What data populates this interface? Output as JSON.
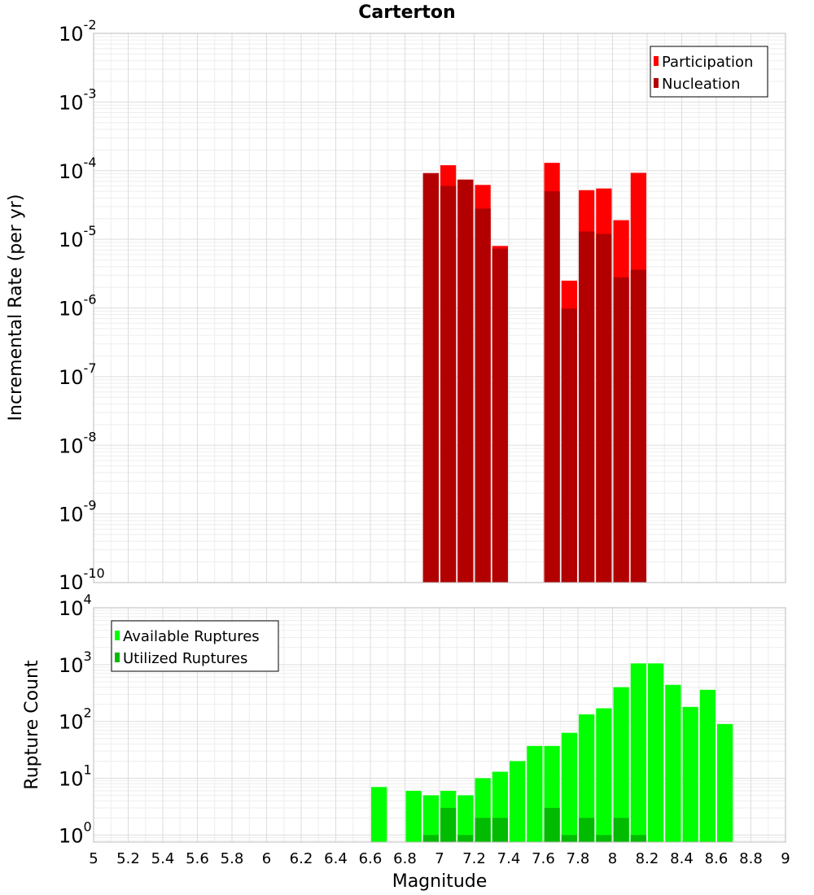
{
  "chart_data": [
    {
      "type": "bar",
      "title": "Carterton",
      "xlabel": "Magnitude",
      "ylabel": "Incremental Rate (per yr)",
      "xlim": [
        5,
        9
      ],
      "ylim": [
        1e-10,
        0.01
      ],
      "yscale": "log",
      "grid": true,
      "legend_position": "top-right",
      "bin_width": 0.1,
      "x": [
        6.95,
        7.05,
        7.15,
        7.25,
        7.35,
        7.65,
        7.75,
        7.85,
        7.95,
        8.05,
        8.15
      ],
      "series": [
        {
          "name": "Participation",
          "color": "#ff0000",
          "values": [
            9.2e-05,
            0.00012,
            7.4e-05,
            6.2e-05,
            8e-06,
            0.00013,
            2.5e-06,
            5.2e-05,
            5.5e-05,
            1.9e-05,
            9.3e-05
          ]
        },
        {
          "name": "Nucleation",
          "color": "#b20000",
          "values": [
            9.2e-05,
            6e-05,
            7.4e-05,
            2.8e-05,
            7.3e-06,
            5e-05,
            9.8e-07,
            1.3e-05,
            1.2e-05,
            2.8e-06,
            3.6e-06
          ]
        }
      ],
      "yticks": [
        {
          "base": "10",
          "exp": "-2"
        },
        {
          "base": "10",
          "exp": "-3"
        },
        {
          "base": "10",
          "exp": "-4"
        },
        {
          "base": "10",
          "exp": "-5"
        },
        {
          "base": "10",
          "exp": "-6"
        },
        {
          "base": "10",
          "exp": "-7"
        },
        {
          "base": "10",
          "exp": "-8"
        },
        {
          "base": "10",
          "exp": "-9"
        },
        {
          "base": "10",
          "exp": "-10"
        }
      ]
    },
    {
      "type": "bar",
      "title": "",
      "xlabel": "Magnitude",
      "ylabel": "Rupture Count",
      "xlim": [
        5,
        9
      ],
      "ylim": [
        0.75,
        10000.0
      ],
      "yscale": "log",
      "grid": true,
      "legend_position": "top-left",
      "bin_width": 0.1,
      "series": [
        {
          "name": "Available Ruptures",
          "color": "#00ff00",
          "x": [
            6.65,
            6.85,
            6.95,
            7.05,
            7.15,
            7.25,
            7.35,
            7.45,
            7.55,
            7.65,
            7.75,
            7.85,
            7.95,
            8.05,
            8.15,
            8.25,
            8.35,
            8.45,
            8.55,
            8.65
          ],
          "values": [
            7,
            6,
            5,
            6,
            5,
            10,
            13,
            20,
            37,
            37,
            63,
            133,
            170,
            400,
            1050,
            1050,
            440,
            180,
            360,
            90
          ]
        },
        {
          "name": "Utilized Ruptures",
          "color": "#00bb00",
          "x": [
            6.95,
            7.05,
            7.15,
            7.25,
            7.35,
            7.65,
            7.75,
            7.85,
            7.95,
            8.05,
            8.15
          ],
          "values": [
            1,
            3,
            1,
            2,
            2,
            3,
            1,
            2,
            1,
            2,
            1
          ]
        }
      ],
      "yticks": [
        {
          "base": "10",
          "exp": "0"
        },
        {
          "base": "10",
          "exp": "1"
        },
        {
          "base": "10",
          "exp": "2"
        },
        {
          "base": "10",
          "exp": "3"
        },
        {
          "base": "10",
          "exp": "4"
        }
      ],
      "xticks": [
        "5",
        "5.2",
        "5.4",
        "5.6",
        "5.8",
        "6",
        "6.2",
        "6.4",
        "6.6",
        "6.8",
        "7",
        "7.2",
        "7.4",
        "7.6",
        "7.8",
        "8",
        "8.2",
        "8.4",
        "8.6",
        "8.8",
        "9"
      ]
    }
  ]
}
